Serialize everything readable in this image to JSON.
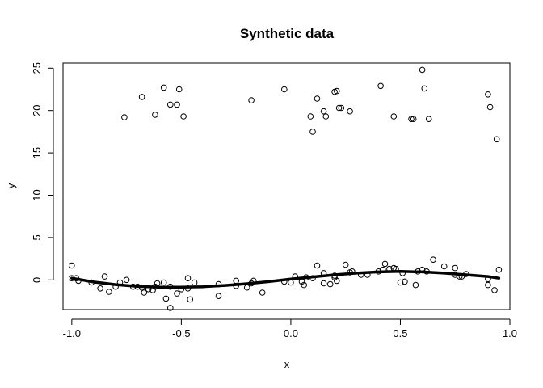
{
  "chart_data": {
    "type": "scatter",
    "title": "Synthetic data",
    "xlabel": "x",
    "ylabel": "y",
    "xlim": [
      -1.04,
      1.0
    ],
    "ylim": [
      -3.5,
      25.6
    ],
    "x_ticks": [
      -1.0,
      -0.5,
      0.0,
      0.5,
      1.0
    ],
    "x_tick_labels": [
      "-1.0",
      "-0.5",
      "0.0",
      "0.5",
      "1.0"
    ],
    "y_ticks": [
      0,
      5,
      10,
      15,
      20,
      25
    ],
    "y_tick_labels": [
      "0",
      "5",
      "10",
      "15",
      "20",
      "25"
    ],
    "grid": false,
    "point_style": "open-circle",
    "series": [
      {
        "type": "scatter",
        "x": [
          -1.0,
          -0.98,
          -0.91,
          -0.85,
          -0.83,
          -0.8,
          -0.75,
          -0.7,
          -0.67,
          -0.65,
          -0.62,
          -0.61,
          -0.57,
          -0.55,
          -0.52,
          -0.5,
          -0.47,
          -0.46,
          -0.44,
          -0.33,
          -0.25,
          -0.2,
          -0.17,
          -0.13,
          0.0,
          0.02,
          0.06,
          0.07,
          0.12,
          0.15,
          0.18,
          0.2,
          0.21,
          0.25,
          0.28,
          0.35,
          0.4,
          0.43,
          0.45,
          0.48,
          0.5,
          0.52,
          0.57,
          0.6,
          0.65,
          0.7,
          0.75,
          0.77,
          0.8,
          0.9,
          0.93,
          0.95,
          -1.0,
          -0.97,
          -0.87,
          -0.78,
          -0.72,
          -0.68,
          -0.63,
          -0.58,
          -0.55,
          -0.47,
          -0.33,
          -0.25,
          -0.18,
          -0.03,
          0.05,
          0.1,
          0.15,
          0.2,
          0.27,
          0.32,
          0.42,
          0.47,
          0.51,
          0.58,
          0.62,
          0.75,
          0.78,
          0.9
        ],
        "y": [
          1.7,
          0.2,
          -0.3,
          0.4,
          -1.4,
          -0.8,
          0.0,
          -0.8,
          -1.5,
          -1.1,
          -0.8,
          -0.4,
          -2.2,
          -3.3,
          -1.6,
          -1.1,
          0.2,
          -2.3,
          -0.3,
          -1.9,
          -0.7,
          -0.9,
          -0.1,
          -1.5,
          -0.3,
          0.4,
          -0.6,
          0.3,
          1.7,
          0.8,
          -0.5,
          0.5,
          -0.1,
          1.8,
          1.0,
          0.6,
          1.0,
          1.9,
          1.3,
          1.3,
          -0.3,
          -0.2,
          -0.6,
          1.2,
          2.4,
          1.6,
          1.4,
          0.4,
          0.7,
          -0.6,
          -1.2,
          1.2,
          0.2,
          -0.1,
          -1.0,
          -0.3,
          -0.8,
          -0.9,
          -1.2,
          -0.3,
          -0.8,
          -1.0,
          -0.5,
          -0.1,
          -0.4,
          -0.2,
          -0.2,
          0.2,
          -0.4,
          0.3,
          0.9,
          0.6,
          1.2,
          1.4,
          0.8,
          1.0,
          1.0,
          0.6,
          0.4,
          0.1
        ]
      },
      {
        "type": "scatter",
        "x": [
          -0.76,
          -0.68,
          -0.62,
          -0.58,
          -0.55,
          -0.52,
          -0.51,
          -0.49,
          -0.18,
          -0.03,
          0.09,
          0.1,
          0.12,
          0.15,
          0.16,
          0.2,
          0.21,
          0.22,
          0.23,
          0.27,
          0.41,
          0.47,
          0.55,
          0.56,
          0.6,
          0.61,
          0.63,
          0.9,
          0.91,
          0.94
        ],
        "y": [
          19.2,
          21.6,
          19.5,
          22.7,
          20.7,
          20.7,
          22.5,
          19.3,
          21.2,
          22.5,
          19.3,
          17.5,
          21.4,
          19.9,
          19.3,
          22.2,
          22.3,
          20.3,
          20.3,
          19.9,
          22.9,
          19.3,
          19.0,
          19.0,
          24.8,
          22.6,
          19.0,
          21.9,
          20.4,
          16.6
        ]
      },
      {
        "type": "line",
        "x": [
          -1.0,
          -0.9,
          -0.8,
          -0.7,
          -0.6,
          -0.5,
          -0.4,
          -0.3,
          -0.2,
          -0.1,
          0.0,
          0.1,
          0.2,
          0.3,
          0.4,
          0.5,
          0.6,
          0.7,
          0.8,
          0.9,
          0.95
        ],
        "y": [
          0.2,
          -0.25,
          -0.55,
          -0.75,
          -0.85,
          -0.85,
          -0.8,
          -0.65,
          -0.45,
          -0.2,
          0.1,
          0.35,
          0.6,
          0.8,
          0.95,
          1.0,
          0.95,
          0.8,
          0.6,
          0.4,
          0.2
        ]
      }
    ]
  }
}
